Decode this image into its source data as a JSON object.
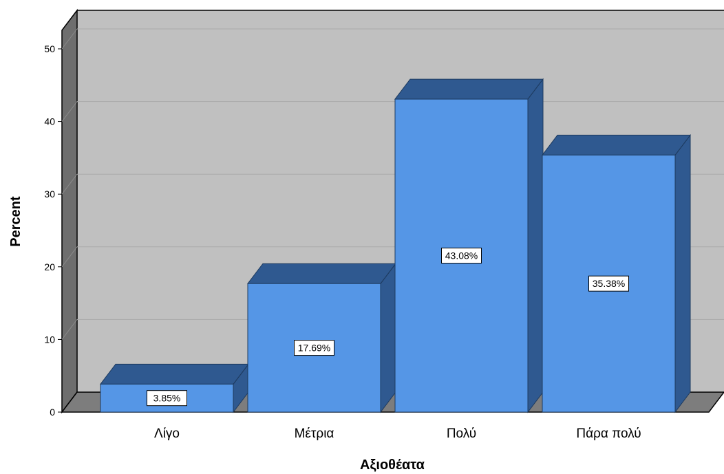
{
  "chart_data": {
    "type": "bar",
    "style": "3d",
    "categories": [
      "Λίγο",
      "Μέτρια",
      "Πολύ",
      "Πάρα πολύ"
    ],
    "values": [
      3.85,
      17.69,
      43.08,
      35.38
    ],
    "data_labels": [
      "3.85%",
      "17.69%",
      "43.08%",
      "35.38%"
    ],
    "xlabel": "Αξιοθέατα",
    "ylabel": "Percent",
    "ylim": [
      0,
      55
    ],
    "yticks": [
      0,
      10,
      20,
      30,
      40,
      50
    ],
    "grid": true,
    "legend": "none",
    "colors": {
      "bar_front": "#5596e6",
      "bar_top": "#2f5990",
      "bar_side": "#2f5990",
      "plot_back": "#c0c0c0",
      "wall_side": "#6e6e6e",
      "floor": "#7d7d7d",
      "grid": "#aaaaaa"
    }
  }
}
